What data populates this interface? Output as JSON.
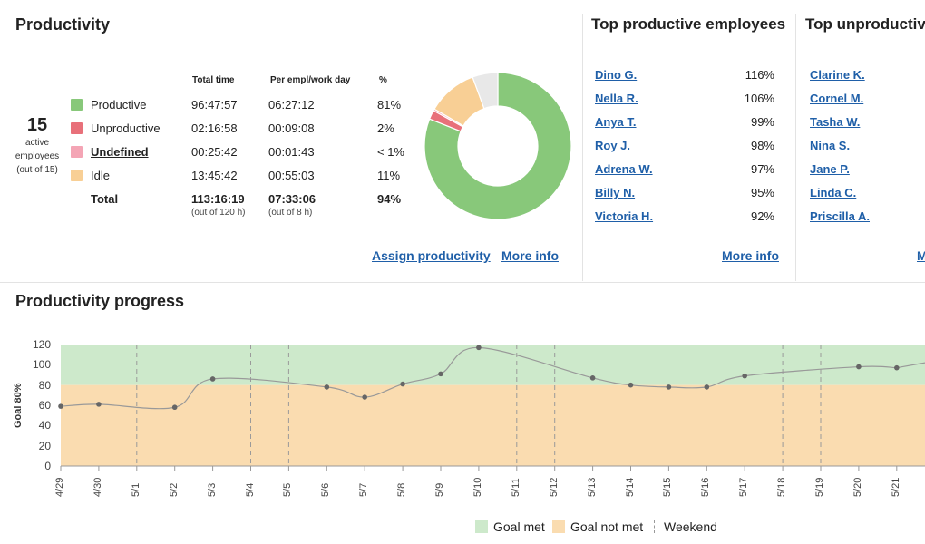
{
  "productivity": {
    "title": "Productivity",
    "active": {
      "count": "15",
      "label_line1": "active",
      "label_line2": "employees",
      "label_line3": "(out of 15)"
    },
    "headers": {
      "total_time": "Total time",
      "per_empl": "Per empl/work day",
      "pct": "%"
    },
    "rows": [
      {
        "label": "Productive",
        "total": "96:47:57",
        "per": "06:27:12",
        "pct": "81%",
        "color": "#88c87a"
      },
      {
        "label": "Unproductive",
        "total": "02:16:58",
        "per": "00:09:08",
        "pct": "2%",
        "color": "#e8707a"
      },
      {
        "label": "Undefined",
        "total": "00:25:42",
        "per": "00:01:43",
        "pct": "< 1%",
        "color": "#f4a5b5"
      },
      {
        "label": "Idle",
        "total": "13:45:42",
        "per": "00:55:03",
        "pct": "11%",
        "color": "#f8cf95"
      }
    ],
    "total": {
      "label": "Total",
      "total": "113:16:19",
      "total_sub": "(out of 120 h)",
      "per": "07:33:06",
      "per_sub": "(out of 8 h)",
      "pct": "94%"
    },
    "assign_link": "Assign productivity",
    "more_info": "More info",
    "donut": [
      {
        "label": "Productive",
        "value": 81,
        "color": "#88c87a"
      },
      {
        "label": "Unproductive",
        "value": 2,
        "color": "#e8707a"
      },
      {
        "label": "Undefined",
        "value": 0.4,
        "color": "#f4a5b5"
      },
      {
        "label": "Idle",
        "value": 11,
        "color": "#f8cf95"
      },
      {
        "label": "Remaining",
        "value": 5.6,
        "color": "#e8e8e8"
      }
    ]
  },
  "top_productive": {
    "title": "Top productive employees",
    "employees": [
      {
        "name": "Dino G.",
        "pct": "116%"
      },
      {
        "name": "Nella R.",
        "pct": "106%"
      },
      {
        "name": "Anya T.",
        "pct": "99%"
      },
      {
        "name": "Roy J.",
        "pct": "98%"
      },
      {
        "name": "Adrena W.",
        "pct": "97%"
      },
      {
        "name": "Billy N.",
        "pct": "95%"
      },
      {
        "name": "Victoria H.",
        "pct": "92%"
      }
    ],
    "more_info": "More info"
  },
  "top_unproductive": {
    "title": "Top unproductive",
    "employees": [
      "Clarine K.",
      "Cornel M.",
      "Tasha W.",
      "Nina S.",
      "Jane P.",
      "Linda C.",
      "Priscilla A."
    ],
    "more_info_partial": "M"
  },
  "progress": {
    "title": "Productivity progress",
    "legend": {
      "goal_met": "Goal met",
      "goal_not_met": "Goal not met",
      "weekend": "Weekend"
    },
    "colors": {
      "goal_met": "#cde9cb",
      "goal_not_met": "#fadcb0",
      "line": "#999999",
      "point": "#666666"
    }
  },
  "chart_data": {
    "type": "line",
    "ylabel": "Goal 80%",
    "ylim": [
      0,
      120
    ],
    "yticks": [
      0,
      20,
      40,
      60,
      80,
      100,
      120
    ],
    "goal": 80,
    "categories": [
      "4/29",
      "4/30",
      "5/1",
      "5/2",
      "5/3",
      "5/4",
      "5/5",
      "5/6",
      "5/7",
      "5/8",
      "5/9",
      "5/10",
      "5/11",
      "5/12",
      "5/13",
      "5/14",
      "5/15",
      "5/16",
      "5/17",
      "5/18",
      "5/19",
      "5/20",
      "5/21"
    ],
    "weekend_dividers": [
      "5/1",
      "5/4",
      "5/5",
      "5/11",
      "5/12",
      "5/18",
      "5/19"
    ],
    "values": [
      59,
      61,
      null,
      58,
      86,
      null,
      null,
      78,
      68,
      81,
      91,
      117,
      null,
      null,
      87,
      80,
      78,
      78,
      89,
      null,
      null,
      98,
      97
    ],
    "grid": true
  }
}
